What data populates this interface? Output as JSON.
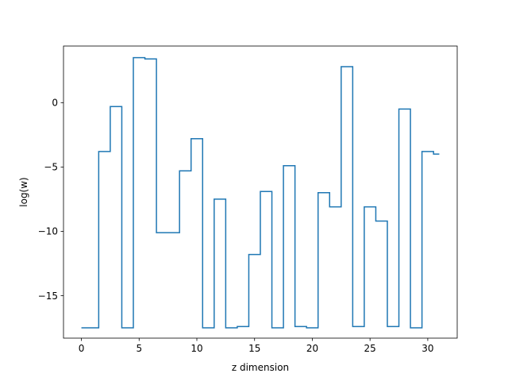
{
  "chart_data": {
    "type": "line",
    "drawstyle": "steps-mid",
    "title": "",
    "xlabel": "z dimension",
    "ylabel": "log(w)",
    "xlim": [
      -1.55,
      32.55
    ],
    "ylim": [
      -18.3,
      4.4
    ],
    "xticks": [
      0,
      5,
      10,
      15,
      20,
      25,
      30
    ],
    "yticks": [
      -15,
      -10,
      -5,
      0
    ],
    "ytick_labels": [
      "−15",
      "−10",
      "−5",
      "0"
    ],
    "grid": false,
    "legend": "none",
    "series": [
      {
        "color": "#1f77b4",
        "x": [
          0,
          1,
          2,
          3,
          4,
          5,
          6,
          7,
          8,
          9,
          10,
          11,
          12,
          13,
          14,
          15,
          16,
          17,
          18,
          19,
          20,
          21,
          22,
          23,
          24,
          25,
          26,
          27,
          28,
          29,
          30,
          31
        ],
        "y": [
          -17.5,
          -17.5,
          -3.8,
          -0.3,
          -17.5,
          3.5,
          3.4,
          -10.1,
          -10.1,
          -5.3,
          -2.8,
          -17.5,
          -7.5,
          -17.5,
          -17.4,
          -11.8,
          -6.9,
          -17.5,
          -4.9,
          -17.4,
          -17.5,
          -7.0,
          -8.1,
          2.8,
          -17.4,
          -8.1,
          -9.2,
          -17.4,
          -0.5,
          -17.5,
          -3.8,
          -4.0
        ]
      }
    ]
  }
}
